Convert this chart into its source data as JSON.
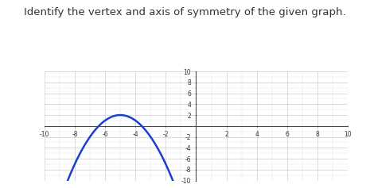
{
  "title": "Identify the vertex and axis of symmetry of the given graph.",
  "title_fontsize": 9.5,
  "xlim": [
    -10,
    10
  ],
  "ylim": [
    -10,
    10
  ],
  "xticks": [
    -10,
    -8,
    -6,
    -4,
    -2,
    2,
    4,
    6,
    8,
    10
  ],
  "yticks": [
    -10,
    -8,
    -6,
    -4,
    -2,
    2,
    4,
    6,
    8,
    10
  ],
  "parabola_vertex_x": -5,
  "parabola_vertex_y": 2,
  "parabola_a": -1,
  "curve_color": "#1a3fcf",
  "curve_linewidth": 1.8,
  "background_color": "#ffffff",
  "grid_color": "#cccccc",
  "minor_grid_color": "#e0e0e0",
  "tick_label_fontsize": 5.5
}
